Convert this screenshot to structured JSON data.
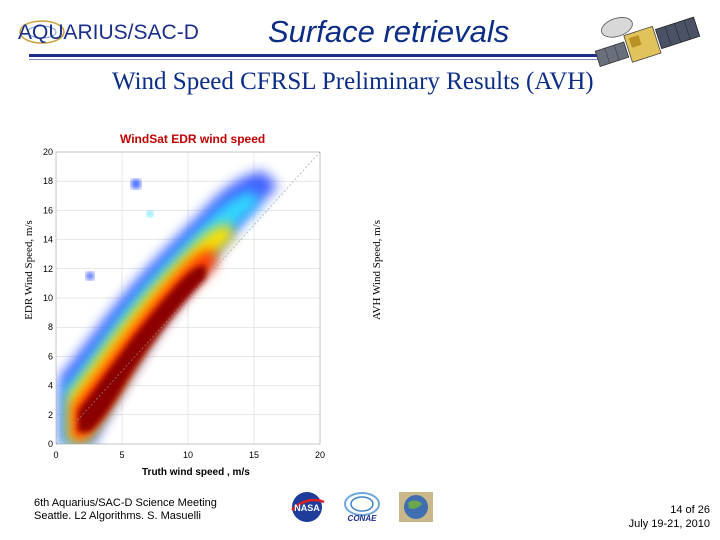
{
  "header": {
    "logo_text": "AQUARIUS/SAC-D",
    "title": "Surface retrievals",
    "subtitle": "Wind Speed CFRSL Preliminary Results (AVH)"
  },
  "side_labels": {
    "left": "EDR Wind Speed, m/s",
    "right": "AVH Wind Speed, m/s"
  },
  "chart_data": {
    "type": "heatmap",
    "title": "WindSat EDR wind speed",
    "xlabel": "Truth wind speed , m/s",
    "ylabel": "",
    "xlim": [
      0,
      20
    ],
    "ylim": [
      0,
      20
    ],
    "x_ticks": [
      "0",
      "5",
      "10",
      "15",
      "20"
    ],
    "y_ticks": [
      "0",
      "2",
      "4",
      "6",
      "8",
      "10",
      "12",
      "14",
      "16",
      "18",
      "20"
    ],
    "colors": {
      "high": "#8b0000",
      "mid": "#ff3b00",
      "low": "#ffe000",
      "lower": "#33d6ff",
      "lowest": "#2a4dff",
      "title": "#c00000"
    }
  },
  "footer": {
    "meeting": "6th Aquarius/SAC-D Science Meeting",
    "location": "Seattle. L2 Algorithms. S. Masuelli",
    "page": "14 of  26",
    "date": "July 19-21, 2010",
    "nasa_text": "NASA",
    "conae_text": "CONAE"
  },
  "icons": {
    "satellite": "satellite-icon",
    "nasa": "nasa-logo",
    "conae": "conae-logo",
    "third": "globe-logo"
  }
}
